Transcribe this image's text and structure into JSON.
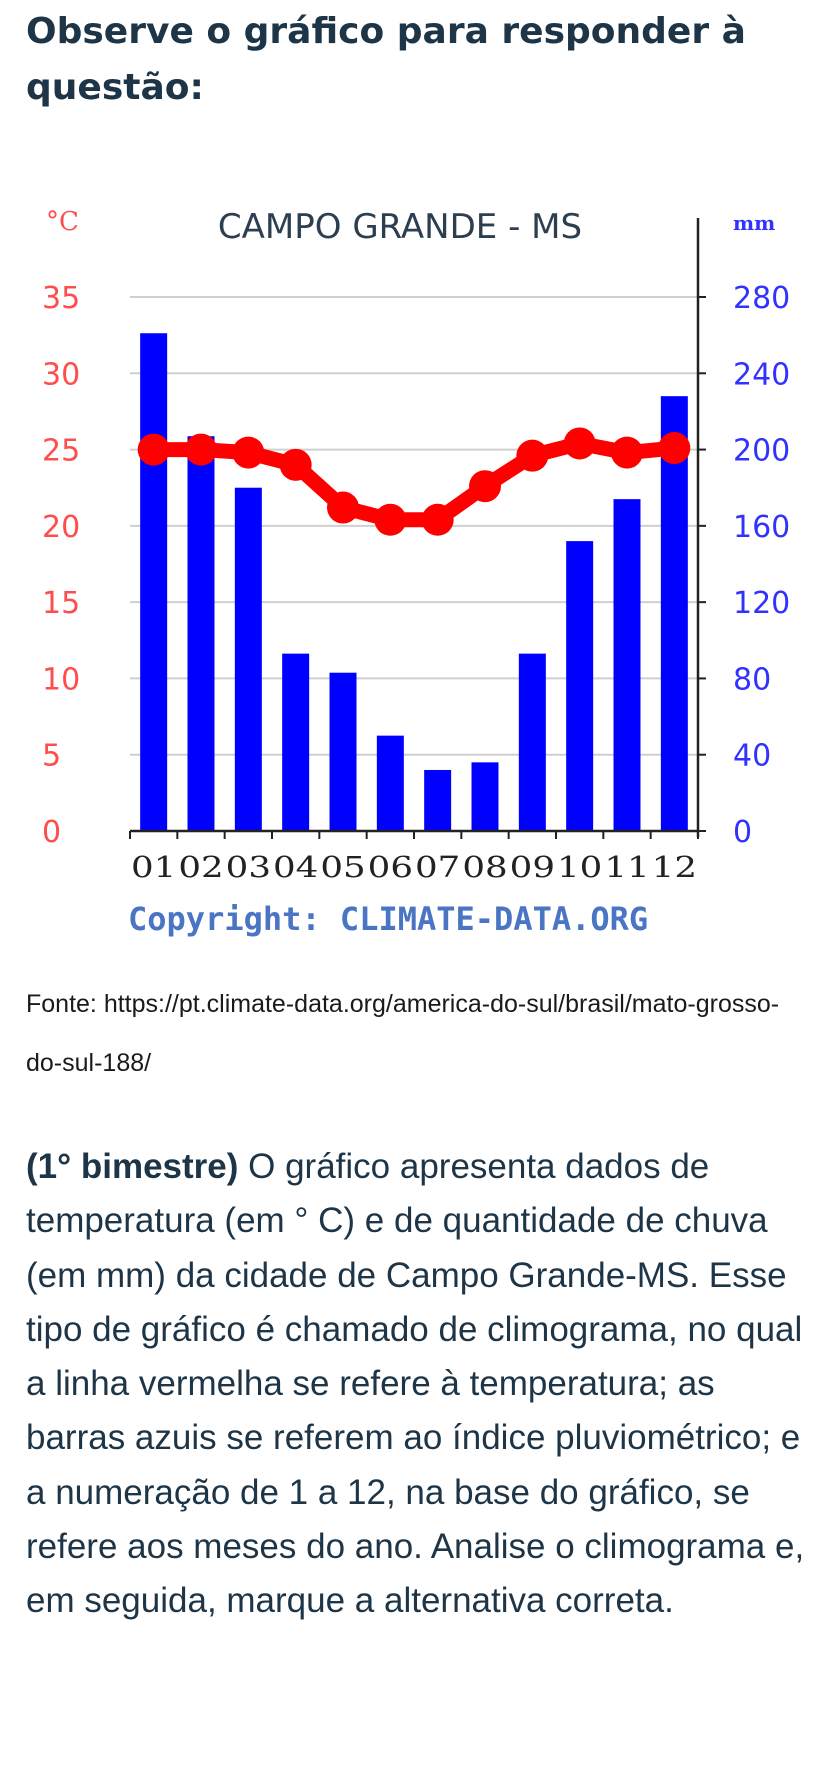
{
  "header": {
    "title": "Observe o gráfico para responder à questão:"
  },
  "source": {
    "text": "Fonte: https://pt.climate-data.org/america-do-sul/brasil/mato-grosso-do-sul-188/"
  },
  "question": {
    "tag": "(1° bimestre)",
    "text": " O gráfico apresenta dados de temperatura (em ° C) e de quantidade de chuva (em mm) da cidade de Campo Grande-MS. Esse tipo de gráfico é chamado de climograma, no qual a linha vermelha se refere à temperatura; as barras azuis se referem ao índice pluviométrico; e a numeração de 1 a 12, na base do gráfico, se refere aos meses do ano. Analise o climograma e, em seguida, marque a alternativa correta."
  },
  "chart_data": {
    "type": "bar",
    "title": "CAMPO GRANDE - MS",
    "copyright": "Copyright: CLIMATE-DATA.ORG",
    "categories": [
      "01",
      "02",
      "03",
      "04",
      "05",
      "06",
      "07",
      "08",
      "09",
      "10",
      "11",
      "12"
    ],
    "y_left": {
      "label": "°C",
      "ticks": [
        0,
        5,
        10,
        15,
        20,
        25,
        30,
        35
      ],
      "ylim": [
        0,
        35
      ],
      "color": "#ff4d4d"
    },
    "y_right": {
      "label": "mm",
      "ticks": [
        0,
        40,
        80,
        120,
        160,
        200,
        240,
        280
      ],
      "ylim": [
        0,
        280
      ],
      "color": "#3232ff"
    },
    "grid": true,
    "series": [
      {
        "type": "bar",
        "axis": "right",
        "color": "#0000ff",
        "values": [
          261,
          207,
          180,
          93,
          83,
          50,
          32,
          36,
          93,
          152,
          174,
          228
        ]
      },
      {
        "type": "line",
        "axis": "left",
        "color": "#ff0000",
        "values": [
          25.0,
          25.0,
          24.8,
          24.0,
          21.2,
          20.4,
          20.4,
          22.6,
          24.6,
          25.4,
          24.8,
          25.1
        ]
      }
    ]
  }
}
